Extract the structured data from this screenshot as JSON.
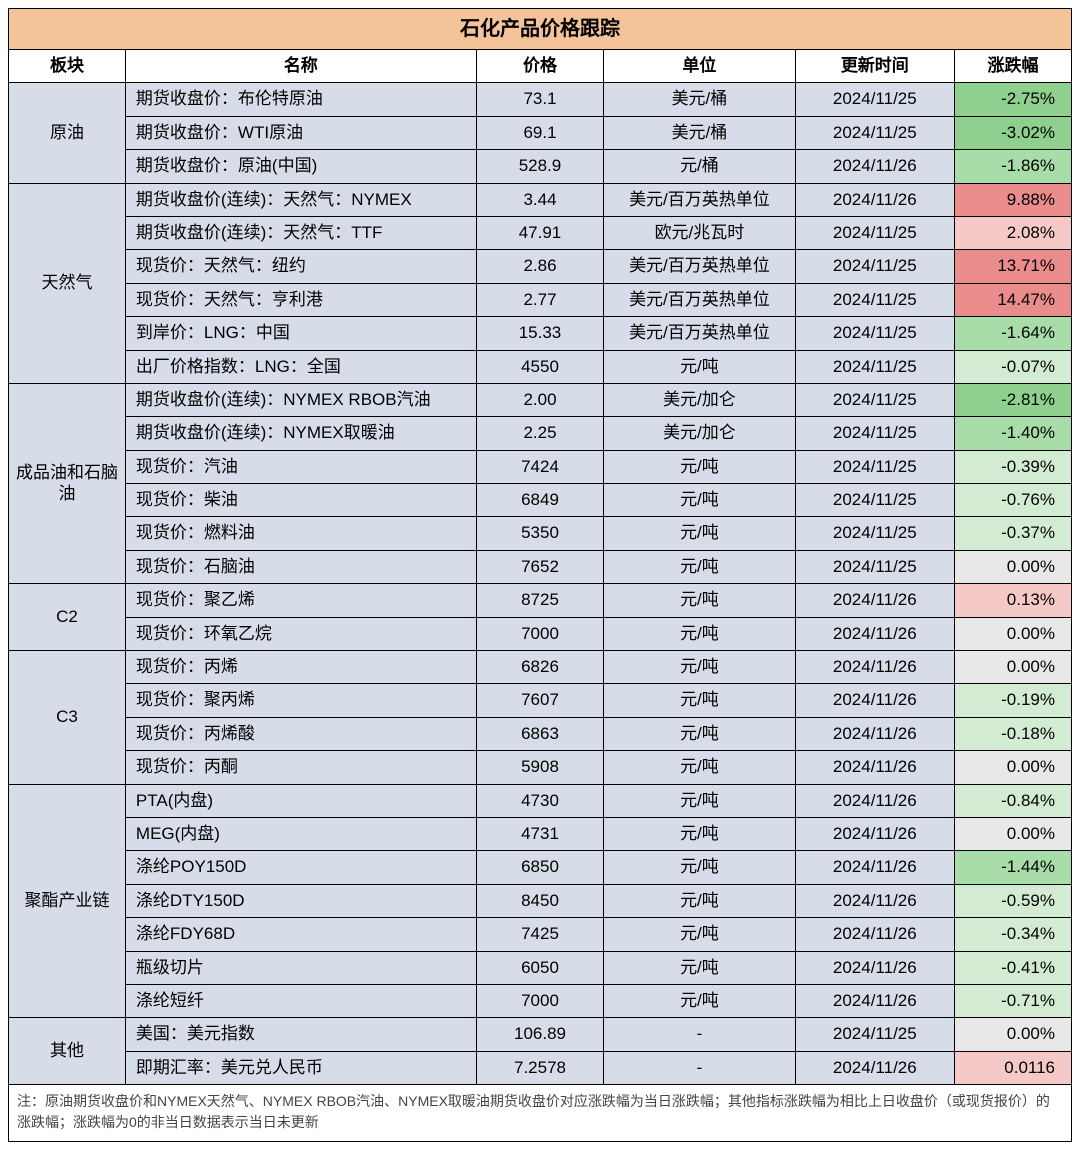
{
  "title": "石化产品价格跟踪",
  "columns": [
    "板块",
    "名称",
    "价格",
    "单位",
    "更新时间",
    "涨跌幅"
  ],
  "colors": {
    "header_bg": "#f4c39a",
    "body_bg": "#d6dce8",
    "down_light": "#d3ebd3",
    "down_mid": "#a8dca8",
    "down_strong": "#8fd08f",
    "neutral": "#e8e8e8",
    "up_light": "#f6c9c9",
    "up_mid": "#f0a8a8",
    "up_strong": "#ea8c8c"
  },
  "footnote": "注：原油期货收盘价和NYMEX天然气、NYMEX RBOB汽油、NYMEX取暖油期货收盘价对应涨跌幅为当日涨跌幅；其他指标涨跌幅为相比上日收盘价（或现货报价）的涨跌幅；涨跌幅为0的非当日数据表示当日未更新",
  "sectors": [
    {
      "name": "原油",
      "rows": [
        {
          "name": "期货收盘价：布伦特原油",
          "price": "73.1",
          "unit": "美元/桶",
          "date": "2024/11/25",
          "chg": "-2.75%",
          "chg_color": "#8fd08f"
        },
        {
          "name": "期货收盘价：WTI原油",
          "price": "69.1",
          "unit": "美元/桶",
          "date": "2024/11/25",
          "chg": "-3.02%",
          "chg_color": "#8fd08f"
        },
        {
          "name": "期货收盘价：原油(中国)",
          "price": "528.9",
          "unit": "元/桶",
          "date": "2024/11/26",
          "chg": "-1.86%",
          "chg_color": "#a8dca8"
        }
      ]
    },
    {
      "name": "天然气",
      "rows": [
        {
          "name": "期货收盘价(连续)：天然气：NYMEX",
          "price": "3.44",
          "unit": "美元/百万英热单位",
          "date": "2024/11/26",
          "chg": "9.88%",
          "chg_color": "#ea8c8c"
        },
        {
          "name": "期货收盘价(连续)：天然气：TTF",
          "price": "47.91",
          "unit": "欧元/兆瓦时",
          "date": "2024/11/25",
          "chg": "2.08%",
          "chg_color": "#f6c9c9"
        },
        {
          "name": "现货价：天然气：纽约",
          "price": "2.86",
          "unit": "美元/百万英热单位",
          "date": "2024/11/25",
          "chg": "13.71%",
          "chg_color": "#ea8c8c"
        },
        {
          "name": "现货价：天然气：亨利港",
          "price": "2.77",
          "unit": "美元/百万英热单位",
          "date": "2024/11/25",
          "chg": "14.47%",
          "chg_color": "#ea8c8c"
        },
        {
          "name": "到岸价：LNG：中国",
          "price": "15.33",
          "unit": "美元/百万英热单位",
          "date": "2024/11/25",
          "chg": "-1.64%",
          "chg_color": "#a8dca8"
        },
        {
          "name": "出厂价格指数：LNG：全国",
          "price": "4550",
          "unit": "元/吨",
          "date": "2024/11/25",
          "chg": "-0.07%",
          "chg_color": "#d3ebd3"
        }
      ]
    },
    {
      "name": "成品油和石脑油",
      "rows": [
        {
          "name": "期货收盘价(连续)：NYMEX RBOB汽油",
          "price": "2.00",
          "unit": "美元/加仑",
          "date": "2024/11/25",
          "chg": "-2.81%",
          "chg_color": "#8fd08f"
        },
        {
          "name": "期货收盘价(连续)：NYMEX取暖油",
          "price": "2.25",
          "unit": "美元/加仑",
          "date": "2024/11/25",
          "chg": "-1.40%",
          "chg_color": "#a8dca8"
        },
        {
          "name": "现货价：汽油",
          "price": "7424",
          "unit": "元/吨",
          "date": "2024/11/25",
          "chg": "-0.39%",
          "chg_color": "#d3ebd3"
        },
        {
          "name": "现货价：柴油",
          "price": "6849",
          "unit": "元/吨",
          "date": "2024/11/25",
          "chg": "-0.76%",
          "chg_color": "#d3ebd3"
        },
        {
          "name": "现货价：燃料油",
          "price": "5350",
          "unit": "元/吨",
          "date": "2024/11/25",
          "chg": "-0.37%",
          "chg_color": "#d3ebd3"
        },
        {
          "name": "现货价：石脑油",
          "price": "7652",
          "unit": "元/吨",
          "date": "2024/11/25",
          "chg": "0.00%",
          "chg_color": "#e8e8e8"
        }
      ]
    },
    {
      "name": "C2",
      "rows": [
        {
          "name": "现货价：聚乙烯",
          "price": "8725",
          "unit": "元/吨",
          "date": "2024/11/26",
          "chg": "0.13%",
          "chg_color": "#f6c9c9"
        },
        {
          "name": "现货价：环氧乙烷",
          "price": "7000",
          "unit": "元/吨",
          "date": "2024/11/26",
          "chg": "0.00%",
          "chg_color": "#e8e8e8"
        }
      ]
    },
    {
      "name": "C3",
      "rows": [
        {
          "name": "现货价：丙烯",
          "price": "6826",
          "unit": "元/吨",
          "date": "2024/11/26",
          "chg": "0.00%",
          "chg_color": "#e8e8e8"
        },
        {
          "name": "现货价：聚丙烯",
          "price": "7607",
          "unit": "元/吨",
          "date": "2024/11/26",
          "chg": "-0.19%",
          "chg_color": "#d3ebd3"
        },
        {
          "name": "现货价：丙烯酸",
          "price": "6863",
          "unit": "元/吨",
          "date": "2024/11/26",
          "chg": "-0.18%",
          "chg_color": "#d3ebd3"
        },
        {
          "name": "现货价：丙酮",
          "price": "5908",
          "unit": "元/吨",
          "date": "2024/11/26",
          "chg": "0.00%",
          "chg_color": "#e8e8e8"
        }
      ]
    },
    {
      "name": "聚酯产业链",
      "rows": [
        {
          "name": "PTA(内盘)",
          "price": "4730",
          "unit": "元/吨",
          "date": "2024/11/26",
          "chg": "-0.84%",
          "chg_color": "#d3ebd3"
        },
        {
          "name": "MEG(内盘)",
          "price": "4731",
          "unit": "元/吨",
          "date": "2024/11/26",
          "chg": "0.00%",
          "chg_color": "#e8e8e8"
        },
        {
          "name": "涤纶POY150D",
          "price": "6850",
          "unit": "元/吨",
          "date": "2024/11/26",
          "chg": "-1.44%",
          "chg_color": "#a8dca8"
        },
        {
          "name": "涤纶DTY150D",
          "price": "8450",
          "unit": "元/吨",
          "date": "2024/11/26",
          "chg": "-0.59%",
          "chg_color": "#d3ebd3"
        },
        {
          "name": "涤纶FDY68D",
          "price": "7425",
          "unit": "元/吨",
          "date": "2024/11/26",
          "chg": "-0.34%",
          "chg_color": "#d3ebd3"
        },
        {
          "name": "瓶级切片",
          "price": "6050",
          "unit": "元/吨",
          "date": "2024/11/26",
          "chg": "-0.41%",
          "chg_color": "#d3ebd3"
        },
        {
          "name": "涤纶短纤",
          "price": "7000",
          "unit": "元/吨",
          "date": "2024/11/26",
          "chg": "-0.71%",
          "chg_color": "#d3ebd3"
        }
      ]
    },
    {
      "name": "其他",
      "rows": [
        {
          "name": "美国：美元指数",
          "price": "106.89",
          "unit": "-",
          "date": "2024/11/25",
          "chg": "0.00%",
          "chg_color": "#e8e8e8"
        },
        {
          "name": "即期汇率：美元兑人民币",
          "price": "7.2578",
          "unit": "-",
          "date": "2024/11/26",
          "chg": "0.0116",
          "chg_color": "#f6c9c9"
        }
      ]
    }
  ]
}
